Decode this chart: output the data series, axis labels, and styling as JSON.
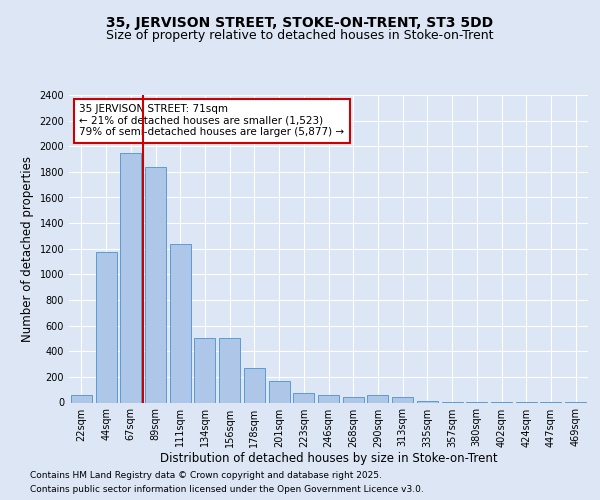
{
  "title_line1": "35, JERVISON STREET, STOKE-ON-TRENT, ST3 5DD",
  "title_line2": "Size of property relative to detached houses in Stoke-on-Trent",
  "xlabel": "Distribution of detached houses by size in Stoke-on-Trent",
  "ylabel": "Number of detached properties",
  "categories": [
    "22sqm",
    "44sqm",
    "67sqm",
    "89sqm",
    "111sqm",
    "134sqm",
    "156sqm",
    "178sqm",
    "201sqm",
    "223sqm",
    "246sqm",
    "268sqm",
    "290sqm",
    "313sqm",
    "335sqm",
    "357sqm",
    "380sqm",
    "402sqm",
    "424sqm",
    "447sqm",
    "469sqm"
  ],
  "values": [
    60,
    1175,
    1950,
    1840,
    1240,
    500,
    500,
    270,
    165,
    75,
    55,
    45,
    55,
    40,
    10,
    5,
    5,
    2,
    2,
    1,
    1
  ],
  "bar_color": "#aec6e8",
  "bar_edge_color": "#5b9bd5",
  "vline_x_index": 2.5,
  "vline_color": "#cc0000",
  "annotation_text": "35 JERVISON STREET: 71sqm\n← 21% of detached houses are smaller (1,523)\n79% of semi-detached houses are larger (5,877) →",
  "annotation_box_color": "#ffffff",
  "annotation_box_edge_color": "#cc0000",
  "ylim": [
    0,
    2400
  ],
  "yticks": [
    0,
    200,
    400,
    600,
    800,
    1000,
    1200,
    1400,
    1600,
    1800,
    2000,
    2200,
    2400
  ],
  "bg_color": "#dce6f5",
  "plot_bg_color": "#dce6f5",
  "footer_line1": "Contains HM Land Registry data © Crown copyright and database right 2025.",
  "footer_line2": "Contains public sector information licensed under the Open Government Licence v3.0.",
  "title_fontsize": 10,
  "subtitle_fontsize": 9,
  "axis_label_fontsize": 8.5,
  "tick_fontsize": 7,
  "footer_fontsize": 6.5
}
